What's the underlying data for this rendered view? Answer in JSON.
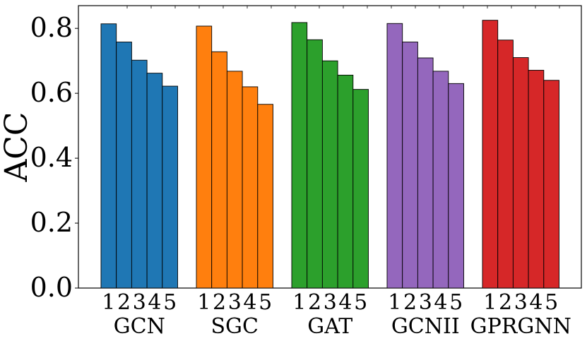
{
  "chart_data": {
    "type": "bar",
    "ylabel": "ACC",
    "ylim": [
      0,
      0.87
    ],
    "yticks": [
      "0.0",
      "0.2",
      "0.4",
      "0.6",
      "0.8"
    ],
    "group_sub_labels": [
      "1",
      "2",
      "3",
      "4",
      "5"
    ],
    "groups": [
      {
        "name": "GCN",
        "color": "#1f77b4",
        "values": [
          0.814,
          0.758,
          0.702,
          0.662,
          0.622
        ]
      },
      {
        "name": "SGC",
        "color": "#ff7f0e",
        "values": [
          0.807,
          0.728,
          0.668,
          0.62,
          0.566
        ]
      },
      {
        "name": "GAT",
        "color": "#2ca02c",
        "values": [
          0.818,
          0.765,
          0.7,
          0.656,
          0.612
        ]
      },
      {
        "name": "GCNII",
        "color": "#9467bd",
        "values": [
          0.815,
          0.758,
          0.709,
          0.668,
          0.63
        ]
      },
      {
        "name": "GPRGNN",
        "color": "#d62728",
        "values": [
          0.825,
          0.764,
          0.71,
          0.671,
          0.64
        ]
      }
    ],
    "grid": false,
    "legend": "none"
  }
}
